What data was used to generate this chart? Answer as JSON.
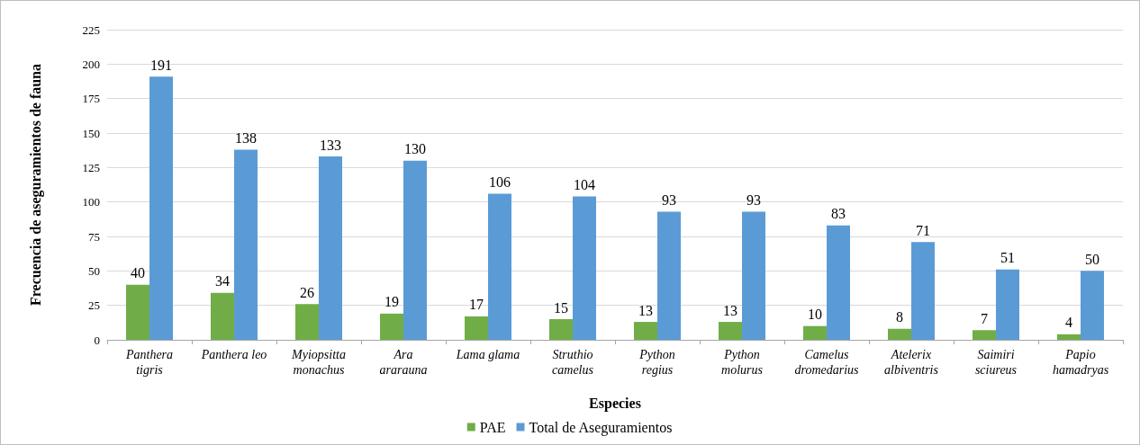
{
  "chart_data": {
    "type": "bar",
    "xlabel": "Especies",
    "ylabel": "Frecuencia de aseguramientos de fauna",
    "categories": [
      "Panthera\ntigris",
      "Panthera leo",
      "Myiopsitta\nmonachus",
      "Ara\nararauna",
      "Lama glama",
      "Struthio\ncamelus",
      "Python\nregius",
      "Python\nmolurus",
      "Camelus\ndromedarius",
      "Atelerix\nalbiventris",
      "Saimiri\nsciureus",
      "Papio\nhamadryas"
    ],
    "series": [
      {
        "name": "PAE",
        "color": "#70ad47",
        "values": [
          40,
          34,
          26,
          19,
          17,
          15,
          13,
          13,
          10,
          8,
          7,
          4
        ]
      },
      {
        "name": "Total de Aseguramientos",
        "color": "#5b9bd5",
        "values": [
          191,
          138,
          133,
          130,
          106,
          104,
          93,
          93,
          83,
          71,
          51,
          50
        ]
      }
    ],
    "ylim": [
      0,
      225
    ],
    "yticks": [
      0,
      25,
      50,
      75,
      100,
      125,
      150,
      175,
      200,
      225
    ],
    "grid": "y",
    "legend": "bottom",
    "data_labels": true
  }
}
